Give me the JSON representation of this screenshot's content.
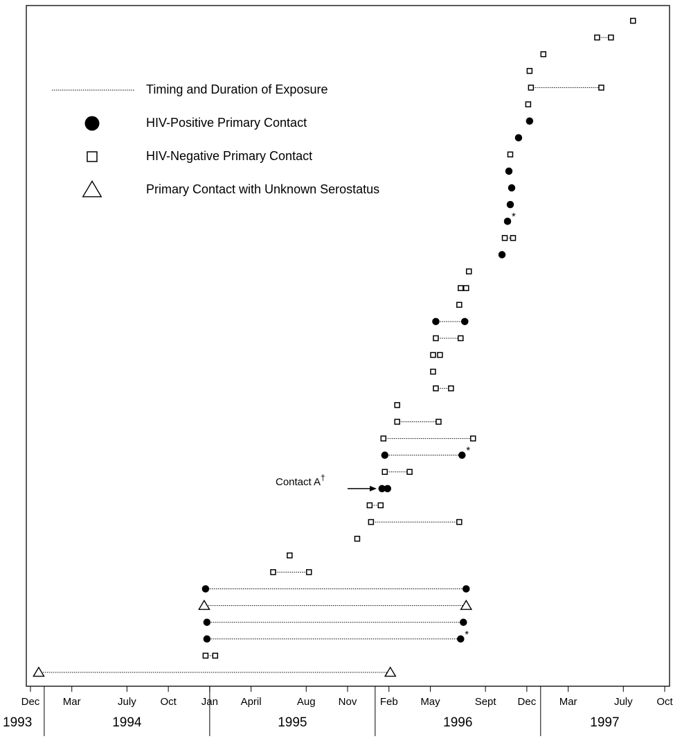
{
  "chart_data": {
    "type": "timeline",
    "xlim": [
      -0.3,
      46.3
    ],
    "xticks": [
      {
        "value": 0,
        "label": "Dec"
      },
      {
        "value": 3,
        "label": "Mar"
      },
      {
        "value": 7,
        "label": "July"
      },
      {
        "value": 10,
        "label": "Oct"
      },
      {
        "value": 13,
        "label": "Jan"
      },
      {
        "value": 16,
        "label": "April"
      },
      {
        "value": 20,
        "label": "Aug"
      },
      {
        "value": 23,
        "label": "Nov"
      },
      {
        "value": 26,
        "label": "Feb"
      },
      {
        "value": 29,
        "label": "May"
      },
      {
        "value": 33,
        "label": "Sept"
      },
      {
        "value": 36,
        "label": "Dec"
      },
      {
        "value": 39,
        "label": "Mar"
      },
      {
        "value": 43,
        "label": "July"
      },
      {
        "value": 46,
        "label": "Oct"
      }
    ],
    "year_ticks": [
      1,
      13,
      25,
      37
    ],
    "years": [
      "1993",
      "1994",
      "1995",
      "1996",
      "1997"
    ],
    "legend": [
      {
        "name": "Timing and Duration of Exposure",
        "marker": "line"
      },
      {
        "name": "HIV-Positive Primary Contact",
        "marker": "circle"
      },
      {
        "name": "HIV-Negative Primary Contact",
        "marker": "square"
      },
      {
        "name": "Primary Contact with Unknown Serostatus",
        "marker": "triangle"
      }
    ],
    "rows": [
      {
        "x": [
          0.6,
          26.1
        ],
        "marker": "triangle"
      },
      {
        "x": [
          12.7,
          13.4
        ],
        "marker": "square"
      },
      {
        "x": [
          12.8,
          31.2
        ],
        "marker": "circle",
        "note": "*"
      },
      {
        "x": [
          12.8,
          31.4
        ],
        "marker": "circle"
      },
      {
        "x": [
          12.6,
          31.6
        ],
        "marker": "triangle"
      },
      {
        "x": [
          12.7,
          31.6
        ],
        "marker": "circle"
      },
      {
        "x": [
          17.6,
          20.2
        ],
        "marker": "square"
      },
      {
        "x": [
          18.8
        ],
        "marker": "square"
      },
      {
        "x": [
          23.7
        ],
        "marker": "square"
      },
      {
        "x": [
          24.7,
          31.1
        ],
        "marker": "square"
      },
      {
        "x": [
          24.6,
          25.4
        ],
        "marker": "square"
      },
      {
        "x": [
          25.5,
          25.9
        ],
        "marker": "circle",
        "label": "Contact A",
        "label_sup": "†"
      },
      {
        "x": [
          25.7,
          27.5
        ],
        "marker": "square"
      },
      {
        "x": [
          25.7,
          31.3
        ],
        "marker": "circle",
        "note": "*"
      },
      {
        "x": [
          25.6,
          32.1
        ],
        "marker": "square"
      },
      {
        "x": [
          26.6,
          29.6
        ],
        "marker": "square"
      },
      {
        "x": [
          26.6
        ],
        "marker": "square"
      },
      {
        "x": [
          29.4,
          30.5
        ],
        "marker": "square"
      },
      {
        "x": [
          29.2
        ],
        "marker": "square"
      },
      {
        "x": [
          29.2,
          29.7
        ],
        "marker": "square"
      },
      {
        "x": [
          29.4,
          31.2
        ],
        "marker": "square"
      },
      {
        "x": [
          29.4,
          31.5
        ],
        "marker": "circle"
      },
      {
        "x": [
          31.1
        ],
        "marker": "square"
      },
      {
        "x": [
          31.2,
          31.6
        ],
        "marker": "square"
      },
      {
        "x": [
          31.8
        ],
        "marker": "square"
      },
      {
        "x": [
          34.2
        ],
        "marker": "circle"
      },
      {
        "x": [
          34.4,
          35.0
        ],
        "marker": "square"
      },
      {
        "x": [
          34.6
        ],
        "marker": "circle",
        "note": "*"
      },
      {
        "x": [
          34.8
        ],
        "marker": "circle"
      },
      {
        "x": [
          34.9
        ],
        "marker": "circle"
      },
      {
        "x": [
          34.7
        ],
        "marker": "circle"
      },
      {
        "x": [
          34.8
        ],
        "marker": "square"
      },
      {
        "x": [
          35.4
        ],
        "marker": "circle"
      },
      {
        "x": [
          36.2
        ],
        "marker": "circle"
      },
      {
        "x": [
          36.1
        ],
        "marker": "square"
      },
      {
        "x": [
          36.3,
          41.4
        ],
        "marker": "square"
      },
      {
        "x": [
          36.2
        ],
        "marker": "square"
      },
      {
        "x": [
          37.2
        ],
        "marker": "square"
      },
      {
        "x": [
          41.1,
          42.1
        ],
        "marker": "square"
      },
      {
        "x": [
          43.7
        ],
        "marker": "square"
      }
    ]
  }
}
